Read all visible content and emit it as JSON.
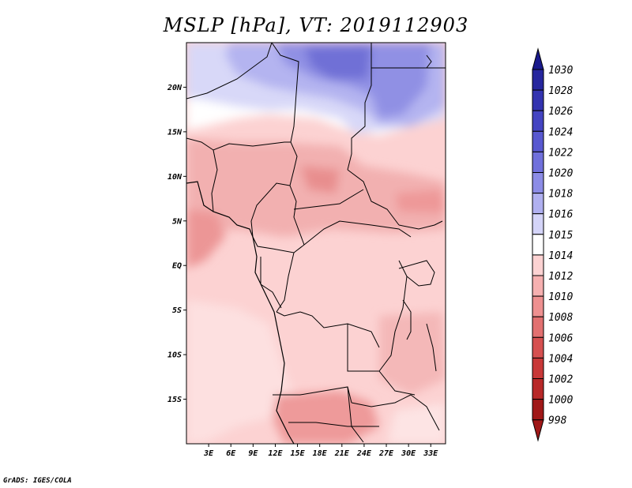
{
  "title": "MSLP [hPa], VT: 2019112903",
  "credit": "GrADS: IGES/COLA",
  "lon_ticks": [
    "3E",
    "6E",
    "9E",
    "12E",
    "15E",
    "18E",
    "21E",
    "24E",
    "27E",
    "30E",
    "33E"
  ],
  "lat_ticks": [
    "20N",
    "15N",
    "10N",
    "5N",
    "EQ",
    "5S",
    "10S",
    "15S"
  ],
  "colorbar": {
    "labels": [
      "1030",
      "1028",
      "1026",
      "1024",
      "1022",
      "1020",
      "1018",
      "1016",
      "1015",
      "1014",
      "1012",
      "1010",
      "1008",
      "1006",
      "1004",
      "1002",
      "1000",
      "998"
    ],
    "colors": [
      "#1a1a8c",
      "#26269e",
      "#3333b0",
      "#4444c2",
      "#5858d0",
      "#7070dc",
      "#8c8ce6",
      "#b0b0f0",
      "#d4d4f8",
      "#ffffff",
      "#fcd2d2",
      "#f6b0b0",
      "#ee9090",
      "#e27070",
      "#d65050",
      "#c83838",
      "#b82828",
      "#a01818"
    ]
  },
  "chart_data": {
    "type": "heatmap",
    "title": "MSLP [hPa], VT: 2019112903",
    "variable": "Mean sea level pressure",
    "units": "hPa",
    "valid_time": "2019112903",
    "x_ticks": [
      "3E",
      "6E",
      "9E",
      "12E",
      "15E",
      "18E",
      "21E",
      "24E",
      "27E",
      "30E",
      "33E"
    ],
    "y_ticks": [
      "20N",
      "15N",
      "10N",
      "5N",
      "EQ",
      "5S",
      "10S",
      "15S"
    ],
    "xlim_deg": [
      0,
      35
    ],
    "ylim_deg": [
      -20,
      25
    ],
    "color_levels": [
      998,
      1000,
      1002,
      1004,
      1006,
      1008,
      1010,
      1012,
      1014,
      1015,
      1016,
      1018,
      1020,
      1022,
      1024,
      1026,
      1028,
      1030
    ]
  }
}
